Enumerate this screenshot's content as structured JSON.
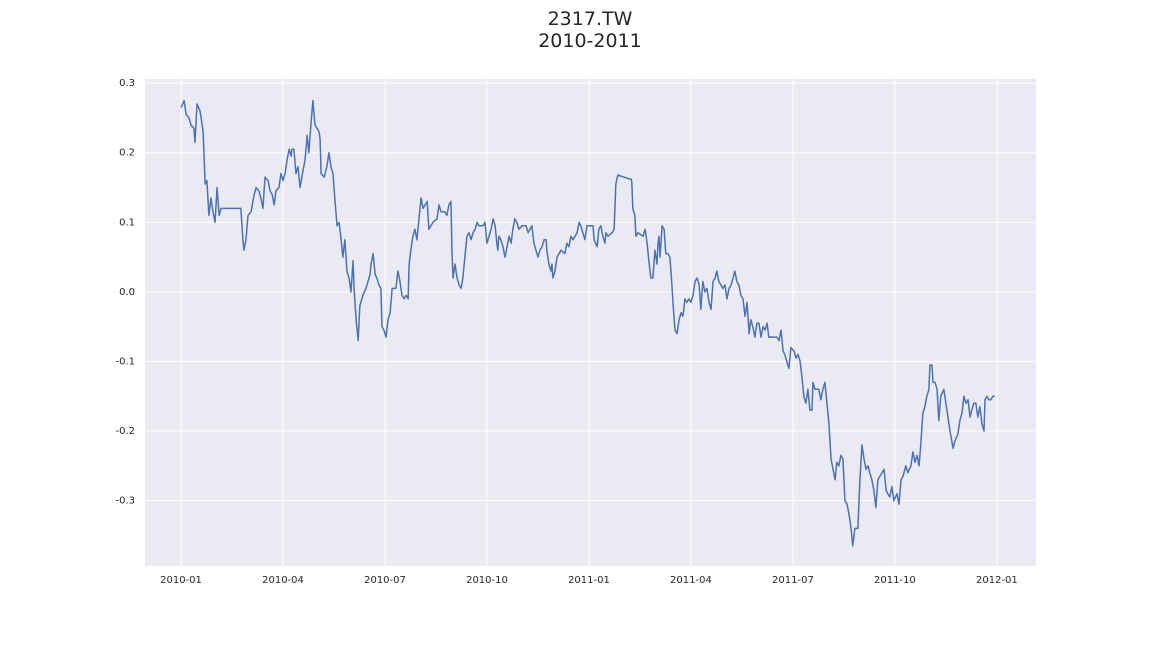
{
  "chart_data": {
    "type": "line",
    "title": "2317.TW\n2010-2011",
    "color": "#4c72b0",
    "grid": true,
    "xlim": [
      -1.06,
      25.15
    ],
    "xticks": [
      {
        "value": 0,
        "label": "2010-01"
      },
      {
        "value": 3,
        "label": "2010-04"
      },
      {
        "value": 6,
        "label": "2010-07"
      },
      {
        "value": 9,
        "label": "2010-10"
      },
      {
        "value": 12,
        "label": "2011-01"
      },
      {
        "value": 15,
        "label": "2011-04"
      },
      {
        "value": 18,
        "label": "2011-07"
      },
      {
        "value": 21,
        "label": "2011-10"
      },
      {
        "value": 24,
        "label": "2012-01"
      }
    ],
    "ylim": [
      -0.394,
      0.306
    ],
    "yticks": [
      -0.3,
      -0.2,
      -0.1,
      {
        "value": 0,
        "label": "0.0"
      },
      0.1,
      0.2,
      0.3
    ],
    "x": [
      0,
      0.09,
      0.15,
      0.24,
      0.29,
      0.38,
      0.41,
      0.47,
      0.56,
      0.65,
      0.71,
      0.76,
      0.82,
      0.88,
      0.94,
      1.0,
      1.06,
      1.12,
      1.18,
      1.29,
      1.44,
      1.62,
      1.76,
      1.82,
      1.85,
      1.91,
      1.97,
      2.06,
      2.15,
      2.21,
      2.29,
      2.35,
      2.41,
      2.47,
      2.56,
      2.62,
      2.68,
      2.74,
      2.79,
      2.88,
      2.94,
      3.0,
      3.06,
      3.12,
      3.18,
      3.24,
      3.26,
      3.32,
      3.38,
      3.44,
      3.5,
      3.59,
      3.65,
      3.71,
      3.76,
      3.82,
      3.88,
      3.94,
      4.0,
      4.06,
      4.09,
      4.12,
      4.21,
      4.29,
      4.35,
      4.41,
      4.47,
      4.53,
      4.59,
      4.65,
      4.71,
      4.76,
      4.82,
      4.88,
      4.94,
      5.0,
      5.06,
      5.09,
      5.15,
      5.21,
      5.26,
      5.35,
      5.44,
      5.5,
      5.56,
      5.59,
      5.65,
      5.71,
      5.76,
      5.82,
      5.88,
      5.91,
      5.97,
      6.03,
      6.09,
      6.15,
      6.21,
      6.26,
      6.32,
      6.38,
      6.44,
      6.5,
      6.56,
      6.62,
      6.68,
      6.71,
      6.76,
      6.82,
      6.88,
      6.94,
      7.0,
      7.06,
      7.12,
      7.18,
      7.24,
      7.29,
      7.35,
      7.41,
      7.53,
      7.59,
      7.65,
      7.76,
      7.82,
      7.88,
      7.94,
      7.97,
      8.0,
      8.06,
      8.12,
      8.18,
      8.24,
      8.29,
      8.35,
      8.41,
      8.47,
      8.53,
      8.59,
      8.65,
      8.71,
      8.76,
      8.88,
      8.94,
      9.0,
      9.06,
      9.12,
      9.18,
      9.24,
      9.29,
      9.32,
      9.35,
      9.41,
      9.47,
      9.53,
      9.59,
      9.65,
      9.71,
      9.76,
      9.82,
      9.88,
      9.94,
      10.03,
      10.15,
      10.21,
      10.26,
      10.32,
      10.38,
      10.44,
      10.5,
      10.56,
      10.62,
      10.68,
      10.74,
      10.76,
      10.82,
      10.88,
      10.91,
      10.94,
      11.0,
      11.06,
      11.18,
      11.29,
      11.35,
      11.41,
      11.47,
      11.53,
      11.65,
      11.71,
      11.76,
      11.82,
      11.88,
      11.94,
      12.12,
      12.15,
      12.24,
      12.29,
      12.35,
      12.41,
      12.47,
      12.5,
      12.56,
      12.68,
      12.74,
      12.79,
      12.85,
      12.97,
      13.15,
      13.24,
      13.26,
      13.29,
      13.35,
      13.38,
      13.44,
      13.59,
      13.65,
      13.71,
      13.76,
      13.82,
      13.88,
      13.94,
      14.0,
      14.03,
      14.06,
      14.09,
      14.15,
      14.21,
      14.26,
      14.32,
      14.38,
      14.44,
      14.47,
      14.53,
      14.59,
      14.65,
      14.71,
      14.76,
      14.79,
      14.82,
      14.88,
      14.94,
      15.0,
      15.06,
      15.12,
      15.18,
      15.24,
      15.29,
      15.35,
      15.41,
      15.47,
      15.53,
      15.59,
      15.65,
      15.71,
      15.76,
      15.82,
      15.88,
      15.94,
      16.0,
      16.06,
      16.12,
      16.18,
      16.24,
      16.29,
      16.35,
      16.41,
      16.47,
      16.53,
      16.59,
      16.65,
      16.71,
      16.76,
      16.82,
      16.88,
      16.94,
      17.0,
      17.06,
      17.12,
      17.18,
      17.24,
      17.29,
      17.41,
      17.53,
      17.59,
      17.65,
      17.71,
      17.76,
      17.82,
      17.88,
      17.94,
      18.03,
      18.09,
      18.15,
      18.21,
      18.26,
      18.32,
      18.38,
      18.44,
      18.5,
      18.56,
      18.59,
      18.65,
      18.76,
      18.82,
      18.88,
      18.94,
      19.0,
      19.06,
      19.12,
      19.18,
      19.24,
      19.29,
      19.35,
      19.41,
      19.47,
      19.53,
      19.59,
      19.65,
      19.71,
      19.76,
      19.82,
      19.91,
      19.97,
      20.03,
      20.09,
      20.15,
      20.21,
      20.26,
      20.32,
      20.38,
      20.44,
      20.5,
      20.56,
      20.62,
      20.68,
      20.74,
      20.79,
      20.85,
      20.91,
      20.97,
      21.06,
      21.12,
      21.18,
      21.24,
      21.32,
      21.38,
      21.47,
      21.53,
      21.59,
      21.65,
      21.71,
      21.76,
      21.82,
      21.88,
      21.94,
      22.0,
      22.03,
      22.09,
      22.12,
      22.18,
      22.24,
      22.29,
      22.35,
      22.44,
      22.5,
      22.56,
      22.62,
      22.71,
      22.76,
      22.85,
      22.91,
      22.97,
      23.03,
      23.09,
      23.15,
      23.21,
      23.26,
      23.32,
      23.38,
      23.44,
      23.5,
      23.56,
      23.62,
      23.65,
      23.71,
      23.76,
      23.82,
      23.88,
      23.94
    ],
    "values": [
      0.265,
      0.275,
      0.255,
      0.25,
      0.24,
      0.235,
      0.215,
      0.27,
      0.26,
      0.23,
      0.155,
      0.16,
      0.11,
      0.135,
      0.115,
      0.1,
      0.15,
      0.11,
      0.12,
      0.12,
      0.12,
      0.12,
      0.12,
      0.075,
      0.06,
      0.075,
      0.11,
      0.115,
      0.14,
      0.15,
      0.145,
      0.135,
      0.12,
      0.165,
      0.16,
      0.145,
      0.14,
      0.125,
      0.145,
      0.15,
      0.17,
      0.16,
      0.17,
      0.19,
      0.205,
      0.195,
      0.205,
      0.205,
      0.17,
      0.18,
      0.15,
      0.175,
      0.19,
      0.225,
      0.2,
      0.24,
      0.275,
      0.24,
      0.235,
      0.23,
      0.22,
      0.17,
      0.165,
      0.18,
      0.2,
      0.18,
      0.17,
      0.13,
      0.095,
      0.1,
      0.075,
      0.05,
      0.075,
      0.03,
      0.02,
      0.0,
      0.045,
      0.005,
      -0.04,
      -0.07,
      -0.02,
      -0.005,
      0.005,
      0.015,
      0.025,
      0.04,
      0.055,
      0.025,
      0.02,
      0.01,
      0.005,
      -0.05,
      -0.055,
      -0.065,
      -0.04,
      -0.03,
      0.005,
      0.005,
      0.005,
      0.03,
      0.015,
      -0.005,
      -0.01,
      -0.005,
      -0.01,
      0.04,
      0.06,
      0.08,
      0.09,
      0.075,
      0.105,
      0.135,
      0.12,
      0.125,
      0.13,
      0.09,
      0.095,
      0.1,
      0.105,
      0.125,
      0.115,
      0.115,
      0.11,
      0.125,
      0.13,
      0.06,
      0.02,
      0.04,
      0.02,
      0.01,
      0.005,
      0.02,
      0.05,
      0.08,
      0.085,
      0.075,
      0.085,
      0.09,
      0.1,
      0.095,
      0.095,
      0.1,
      0.07,
      0.08,
      0.09,
      0.105,
      0.095,
      0.07,
      0.06,
      0.08,
      0.075,
      0.065,
      0.05,
      0.065,
      0.08,
      0.07,
      0.09,
      0.105,
      0.1,
      0.09,
      0.095,
      0.095,
      0.085,
      0.09,
      0.095,
      0.07,
      0.06,
      0.05,
      0.06,
      0.065,
      0.075,
      0.075,
      0.06,
      0.04,
      0.03,
      0.04,
      0.02,
      0.03,
      0.05,
      0.06,
      0.055,
      0.07,
      0.065,
      0.08,
      0.075,
      0.085,
      0.1,
      0.095,
      0.085,
      0.075,
      0.095,
      0.095,
      0.075,
      0.065,
      0.09,
      0.095,
      0.08,
      0.07,
      0.085,
      0.08,
      0.085,
      0.09,
      0.155,
      0.168,
      0.166,
      0.163,
      0.162,
      0.158,
      0.12,
      0.11,
      0.08,
      0.085,
      0.08,
      0.09,
      0.07,
      0.045,
      0.02,
      0.02,
      0.06,
      0.04,
      0.07,
      0.08,
      0.05,
      0.095,
      0.09,
      0.055,
      0.055,
      0.05,
      0.01,
      -0.015,
      -0.055,
      -0.06,
      -0.04,
      -0.03,
      -0.035,
      -0.025,
      -0.01,
      -0.015,
      -0.01,
      -0.015,
      -0.005,
      0.015,
      0.02,
      0.01,
      -0.025,
      0.015,
      0.0,
      0.005,
      -0.015,
      -0.025,
      0.015,
      0.02,
      0.03,
      0.015,
      0.01,
      0.005,
      0.01,
      -0.01,
      0.005,
      0.01,
      0.02,
      0.03,
      0.015,
      0.01,
      -0.005,
      -0.01,
      -0.035,
      -0.015,
      -0.06,
      -0.04,
      -0.05,
      -0.065,
      -0.045,
      -0.045,
      -0.065,
      -0.05,
      -0.055,
      -0.045,
      -0.065,
      -0.065,
      -0.065,
      -0.07,
      -0.055,
      -0.085,
      -0.09,
      -0.1,
      -0.11,
      -0.08,
      -0.085,
      -0.095,
      -0.09,
      -0.1,
      -0.12,
      -0.15,
      -0.16,
      -0.14,
      -0.17,
      -0.17,
      -0.13,
      -0.14,
      -0.14,
      -0.155,
      -0.14,
      -0.13,
      -0.16,
      -0.19,
      -0.24,
      -0.255,
      -0.27,
      -0.245,
      -0.25,
      -0.235,
      -0.24,
      -0.3,
      -0.305,
      -0.32,
      -0.34,
      -0.365,
      -0.34,
      -0.34,
      -0.27,
      -0.22,
      -0.24,
      -0.255,
      -0.25,
      -0.26,
      -0.27,
      -0.285,
      -0.31,
      -0.27,
      -0.265,
      -0.26,
      -0.255,
      -0.285,
      -0.29,
      -0.295,
      -0.28,
      -0.3,
      -0.29,
      -0.305,
      -0.27,
      -0.265,
      -0.25,
      -0.26,
      -0.25,
      -0.23,
      -0.245,
      -0.235,
      -0.25,
      -0.22,
      -0.175,
      -0.165,
      -0.15,
      -0.14,
      -0.105,
      -0.105,
      -0.13,
      -0.13,
      -0.14,
      -0.185,
      -0.15,
      -0.14,
      -0.16,
      -0.18,
      -0.2,
      -0.225,
      -0.215,
      -0.205,
      -0.185,
      -0.175,
      -0.15,
      -0.16,
      -0.155,
      -0.18,
      -0.17,
      -0.16,
      -0.16,
      -0.18,
      -0.165,
      -0.19,
      -0.2,
      -0.155,
      -0.15,
      -0.155,
      -0.155,
      -0.15,
      -0.15
    ]
  }
}
